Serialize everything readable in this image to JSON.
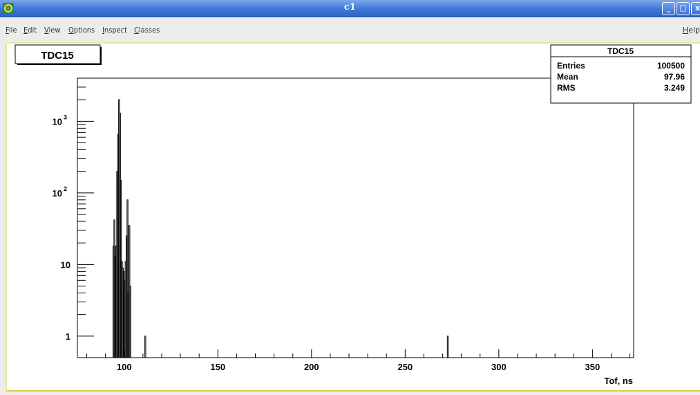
{
  "window": {
    "title": "c1",
    "buttons": [
      "_",
      "□",
      "x"
    ]
  },
  "menu": {
    "items": [
      "File",
      "Edit",
      "View",
      "Options",
      "Inspect",
      "Classes"
    ],
    "help": "Help"
  },
  "histogram": {
    "title_box": "TDC15",
    "stats": {
      "title": "TDC15",
      "rows": [
        {
          "label": "Entries",
          "value": "100500"
        },
        {
          "label": "Mean",
          "value": "97.96"
        },
        {
          "label": "RMS",
          "value": "3.249"
        }
      ]
    }
  },
  "chart_data": {
    "type": "bar",
    "title": "TDC15",
    "xlabel": "Tof, ns",
    "ylabel": "",
    "xlim": [
      75,
      372
    ],
    "ylim": [
      0.5,
      4000
    ],
    "yscale": "log",
    "xticks": [
      "100",
      "150",
      "200",
      "250",
      "300",
      "350"
    ],
    "yticks": [
      "1",
      "10",
      "10^3",
      "10^2"
    ],
    "bins": [
      {
        "x": 94.0,
        "y": 18
      },
      {
        "x": 94.5,
        "y": 42
      },
      {
        "x": 95.0,
        "y": 13
      },
      {
        "x": 95.5,
        "y": 18
      },
      {
        "x": 96.0,
        "y": 200
      },
      {
        "x": 96.5,
        "y": 650
      },
      {
        "x": 97.0,
        "y": 2000
      },
      {
        "x": 97.5,
        "y": 1300
      },
      {
        "x": 98.0,
        "y": 150
      },
      {
        "x": 98.5,
        "y": 11
      },
      {
        "x": 99.0,
        "y": 9
      },
      {
        "x": 99.5,
        "y": 8
      },
      {
        "x": 100.0,
        "y": 6
      },
      {
        "x": 100.5,
        "y": 11
      },
      {
        "x": 101.0,
        "y": 25
      },
      {
        "x": 101.5,
        "y": 80
      },
      {
        "x": 102.0,
        "y": 4
      },
      {
        "x": 102.5,
        "y": 35
      },
      {
        "x": 103.0,
        "y": 5
      },
      {
        "x": 111.0,
        "y": 1
      },
      {
        "x": 272.5,
        "y": 1
      }
    ],
    "grid": false,
    "legend": "stats-box top-right"
  }
}
